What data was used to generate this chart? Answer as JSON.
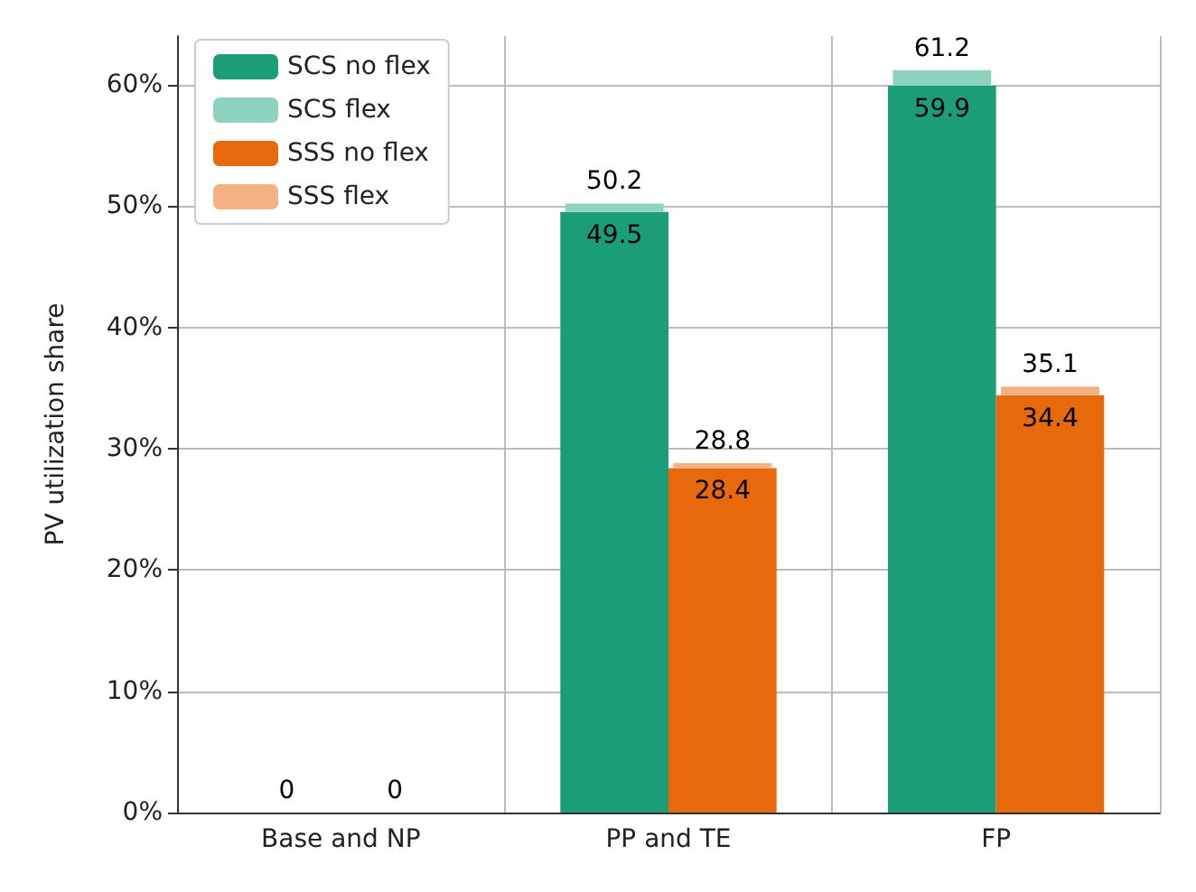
{
  "chart_data": {
    "type": "bar",
    "ylabel": "PV utilization share",
    "categories": [
      "Base and NP",
      "PP and TE",
      "FP"
    ],
    "series": [
      {
        "name": "SCS no flex",
        "color": "#1b9e77",
        "values": [
          0,
          49.5,
          59.9
        ],
        "value_labels": [
          null,
          "49.5",
          "59.9"
        ]
      },
      {
        "name": "SCS flex",
        "color": "#8dd3c0",
        "base": [
          null,
          49.5,
          59.9
        ],
        "values": [
          0,
          0.7,
          1.3
        ]
      },
      {
        "name": "SSS no flex",
        "color": "#e8680c",
        "values": [
          0,
          28.4,
          34.4
        ],
        "value_labels": [
          null,
          "28.4",
          "34.4"
        ]
      },
      {
        "name": "SSS flex",
        "color": "#f4b183",
        "base": [
          null,
          28.4,
          34.4
        ],
        "values": [
          0,
          0.4,
          0.7
        ]
      }
    ],
    "totals": [
      [
        "0",
        "50.2",
        "61.2"
      ],
      [
        "0",
        "28.8",
        "35.1"
      ]
    ],
    "ylim": [
      0,
      64
    ],
    "yticks": [
      {
        "value": 0,
        "label": "0%"
      },
      {
        "value": 10,
        "label": "10%"
      },
      {
        "value": 20,
        "label": "20%"
      },
      {
        "value": 30,
        "label": "30%"
      },
      {
        "value": 40,
        "label": "40%"
      },
      {
        "value": 50,
        "label": "50%"
      },
      {
        "value": 60,
        "label": "60%"
      }
    ],
    "grid": true,
    "legend": "top left"
  }
}
